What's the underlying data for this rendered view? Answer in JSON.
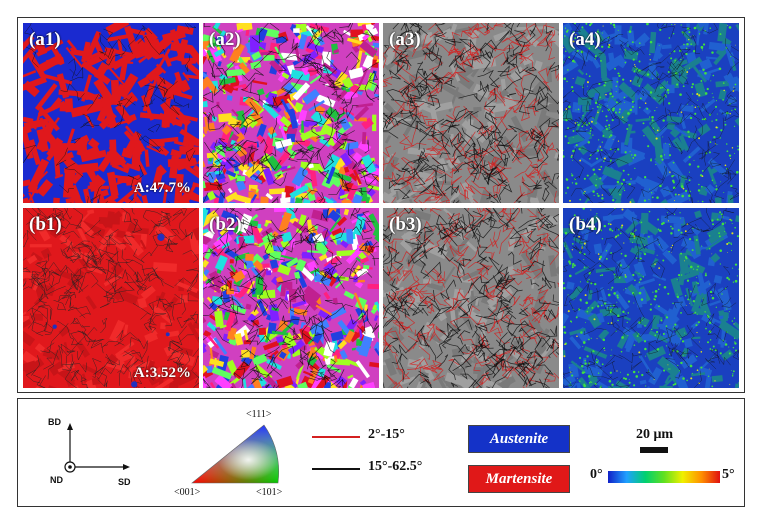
{
  "panels": [
    {
      "id": "a1",
      "label": "(a1)",
      "type": "phase-red-blue",
      "percent": "A:47.7%"
    },
    {
      "id": "a2",
      "label": "(a2)",
      "type": "ipf"
    },
    {
      "id": "a3",
      "label": "(a3)",
      "type": "boundary"
    },
    {
      "id": "a4",
      "label": "(a4)",
      "type": "kam"
    },
    {
      "id": "b1",
      "label": "(b1)",
      "type": "phase-red",
      "percent": "A:3.52%"
    },
    {
      "id": "b2",
      "label": "(b2)",
      "type": "ipf"
    },
    {
      "id": "b3",
      "label": "(b3)",
      "type": "boundary"
    },
    {
      "id": "b4",
      "label": "(b4)",
      "type": "kam"
    }
  ],
  "legend": {
    "axes": {
      "bd": "BD",
      "nd": "ND",
      "sd": "SD"
    },
    "ipf": {
      "top": "<111>",
      "left": "<001>",
      "right": "<101>"
    },
    "boundaries": [
      {
        "label": "2°-15°",
        "color": "#d42020"
      },
      {
        "label": "15°-62.5°",
        "color": "#111111"
      }
    ],
    "phases": [
      {
        "label": "Austenite",
        "color": "#1432c8"
      },
      {
        "label": "Martensite",
        "color": "#e01818"
      }
    ],
    "scale_bar": "20 μm",
    "colorbar": {
      "min": "0°",
      "max": "5°"
    }
  }
}
